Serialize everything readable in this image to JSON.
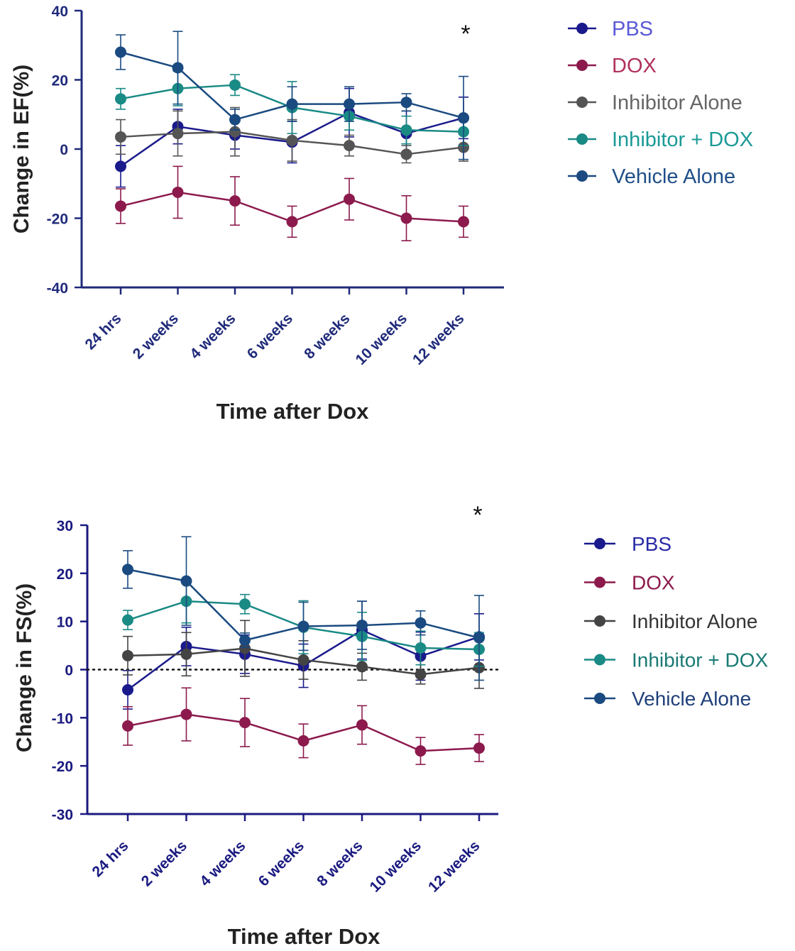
{
  "chart_data": [
    {
      "type": "line",
      "title": "",
      "xlabel": "Time after Dox",
      "ylabel": "Change in EF(%)",
      "categories": [
        "24 hrs",
        "2 weeks",
        "4 weeks",
        "6 weeks",
        "8 weeks",
        "10 weeks",
        "12 weeks"
      ],
      "ylim": [
        -40,
        40
      ],
      "yticks": [
        40,
        20,
        0,
        -20,
        -40
      ],
      "ytick_labels": [
        "40",
        "20",
        "0",
        "-20",
        "-40"
      ],
      "grid": false,
      "zero_line": false,
      "legend_position": "right",
      "annotation": "*",
      "colors": {
        "axis": "#1f2a7a"
      },
      "series": [
        {
          "name": "PBS",
          "color": "#1a1a8c",
          "label_color": "#5a5ad7",
          "values": [
            -5,
            6.5,
            4,
            2,
            10.5,
            4.5,
            9
          ],
          "errors": [
            6,
            5,
            4,
            6,
            7,
            6.5,
            6
          ]
        },
        {
          "name": "DOX",
          "color": "#8c1a4d",
          "label_color": "#b0305c",
          "values": [
            -16.5,
            -12.5,
            -15,
            -21,
            -14.5,
            -20,
            -21
          ],
          "errors": [
            5,
            7.5,
            7,
            4.5,
            6,
            6.5,
            4.5
          ]
        },
        {
          "name": "Inhibitor Alone",
          "color": "#555555",
          "label_color": "#666666",
          "values": [
            3.5,
            4.5,
            5,
            2.5,
            1,
            -1.5,
            0.5
          ],
          "errors": [
            5,
            6.5,
            7,
            6,
            3,
            2.5,
            4
          ]
        },
        {
          "name": "Inhibitor + DOX",
          "color": "#1a8a85",
          "label_color": "#1a9a95",
          "values": [
            14.5,
            17.5,
            18.5,
            12,
            9.5,
            5.5,
            5
          ],
          "errors": [
            3,
            5,
            3,
            7.5,
            4,
            4,
            4
          ]
        },
        {
          "name": "Vehicle Alone",
          "color": "#1a4a80",
          "label_color": "#1f4f88",
          "values": [
            28,
            23.5,
            8.5,
            13,
            13,
            13.5,
            9
          ],
          "errors": [
            5,
            10.5,
            3,
            5,
            5,
            2.5,
            12
          ]
        }
      ]
    },
    {
      "type": "line",
      "title": "",
      "xlabel": "Time after Dox",
      "ylabel": "Change in FS(%)",
      "categories": [
        "24 hrs",
        "2 weeks",
        "4 weeks",
        "6 weeks",
        "8 weeks",
        "10 weeks",
        "12 weeks"
      ],
      "ylim": [
        -30,
        30
      ],
      "yticks": [
        30,
        20,
        10,
        0,
        -10,
        -20,
        -30
      ],
      "ytick_labels": [
        "30",
        "20",
        "10",
        "0",
        "-10",
        "-20",
        "-30"
      ],
      "grid": false,
      "zero_line": true,
      "legend_position": "right",
      "annotation": "*",
      "colors": {
        "axis": "#1a1a80"
      },
      "series": [
        {
          "name": "PBS",
          "color": "#1a1a8c",
          "label_color": "#2a2aa8",
          "values": [
            -4.2,
            4.8,
            3.2,
            0.8,
            8.2,
            2.8,
            6.8
          ],
          "errors": [
            4,
            4,
            4,
            4.5,
            6,
            5,
            4.8
          ]
        },
        {
          "name": "DOX",
          "color": "#8c1a4d",
          "label_color": "#8c1a4d",
          "values": [
            -11.7,
            -9.3,
            -11,
            -14.8,
            -11.5,
            -16.9,
            -16.3
          ],
          "errors": [
            4,
            5.5,
            5,
            3.5,
            4,
            2.8,
            2.8
          ]
        },
        {
          "name": "Inhibitor Alone",
          "color": "#444444",
          "label_color": "#333333",
          "values": [
            2.9,
            3.2,
            4.4,
            2,
            0.6,
            -1,
            0.4
          ],
          "errors": [
            4,
            4.5,
            5.8,
            4,
            2.8,
            2,
            4.3
          ]
        },
        {
          "name": "Inhibitor + DOX",
          "color": "#1a8a85",
          "label_color": "#1a7a75",
          "values": [
            10.3,
            14.2,
            13.6,
            8.8,
            6.9,
            4.5,
            4.2
          ],
          "errors": [
            2,
            4.5,
            2,
            5.5,
            5,
            3.5,
            3.5
          ]
        },
        {
          "name": "Vehicle Alone",
          "color": "#1a4a80",
          "label_color": "#1f3f78",
          "values": [
            20.8,
            18.4,
            6.1,
            9,
            9.2,
            9.7,
            6.6
          ],
          "errors": [
            3.9,
            9.2,
            1.5,
            5,
            5,
            2.5,
            8.8
          ]
        }
      ]
    }
  ]
}
